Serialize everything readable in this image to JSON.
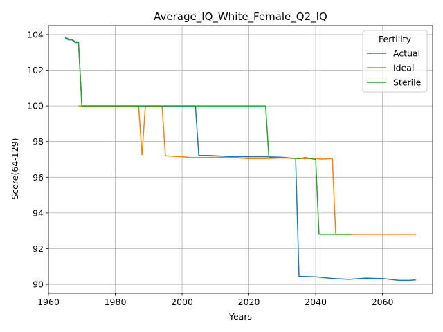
{
  "chart_data": {
    "type": "line",
    "title": "Average_IQ_White_Female_Q2_IQ",
    "xlabel": "Years",
    "ylabel": "Score(64-129)",
    "xlim": [
      1960,
      2075
    ],
    "ylim": [
      89.5,
      104.5
    ],
    "xticks": [
      1960,
      1980,
      2000,
      2020,
      2040,
      2060
    ],
    "yticks": [
      90,
      92,
      94,
      96,
      98,
      100,
      102,
      104
    ],
    "grid": true,
    "legend": {
      "title": "Fertility",
      "placement": "top-right"
    },
    "series": [
      {
        "name": "Actual",
        "color": "#1f77b4",
        "points": [
          [
            1965,
            103.8
          ],
          [
            1966,
            103.7
          ],
          [
            1967,
            103.7
          ],
          [
            1968,
            103.55
          ],
          [
            1969,
            103.55
          ],
          [
            1970,
            100.0
          ],
          [
            1980,
            100.0
          ],
          [
            1990,
            100.0
          ],
          [
            2000,
            100.0
          ],
          [
            2004,
            100.0
          ],
          [
            2005,
            97.22
          ],
          [
            2008,
            97.22
          ],
          [
            2010,
            97.2
          ],
          [
            2015,
            97.15
          ],
          [
            2020,
            97.15
          ],
          [
            2025,
            97.15
          ],
          [
            2030,
            97.12
          ],
          [
            2034,
            97.05
          ],
          [
            2035,
            90.45
          ],
          [
            2040,
            90.42
          ],
          [
            2045,
            90.33
          ],
          [
            2050,
            90.28
          ],
          [
            2055,
            90.35
          ],
          [
            2058,
            90.33
          ],
          [
            2060,
            90.32
          ],
          [
            2065,
            90.22
          ],
          [
            2068,
            90.22
          ],
          [
            2070,
            90.25
          ]
        ]
      },
      {
        "name": "Ideal",
        "color": "#ff7f0e",
        "points": [
          [
            1969,
            100.0
          ],
          [
            1970,
            100.0
          ],
          [
            1980,
            100.0
          ],
          [
            1987,
            100.0
          ],
          [
            1988,
            97.25
          ],
          [
            1989,
            100.0
          ],
          [
            1994,
            100.0
          ],
          [
            1995,
            97.2
          ],
          [
            1997,
            97.18
          ],
          [
            2000,
            97.15
          ],
          [
            2003,
            97.1
          ],
          [
            2005,
            97.1
          ],
          [
            2010,
            97.12
          ],
          [
            2015,
            97.1
          ],
          [
            2020,
            97.05
          ],
          [
            2025,
            97.05
          ],
          [
            2030,
            97.08
          ],
          [
            2035,
            97.05
          ],
          [
            2040,
            97.05
          ],
          [
            2042,
            97.02
          ],
          [
            2045,
            97.05
          ],
          [
            2046,
            92.8
          ],
          [
            2050,
            92.8
          ],
          [
            2060,
            92.8
          ],
          [
            2070,
            92.8
          ]
        ]
      },
      {
        "name": "Sterile",
        "color": "#2ca02c",
        "points": [
          [
            1965,
            103.85
          ],
          [
            1966,
            103.75
          ],
          [
            1967,
            103.72
          ],
          [
            1968,
            103.6
          ],
          [
            1969,
            103.58
          ],
          [
            1970,
            100.0
          ],
          [
            1980,
            100.0
          ],
          [
            1990,
            100.0
          ],
          [
            2000,
            100.0
          ],
          [
            2010,
            100.0
          ],
          [
            2020,
            100.0
          ],
          [
            2025,
            100.0
          ],
          [
            2026,
            97.1
          ],
          [
            2030,
            97.1
          ],
          [
            2035,
            97.05
          ],
          [
            2037,
            97.1
          ],
          [
            2040,
            97.0
          ],
          [
            2041,
            92.8
          ],
          [
            2045,
            92.8
          ],
          [
            2050,
            92.8
          ],
          [
            2051,
            92.8
          ]
        ]
      }
    ]
  }
}
